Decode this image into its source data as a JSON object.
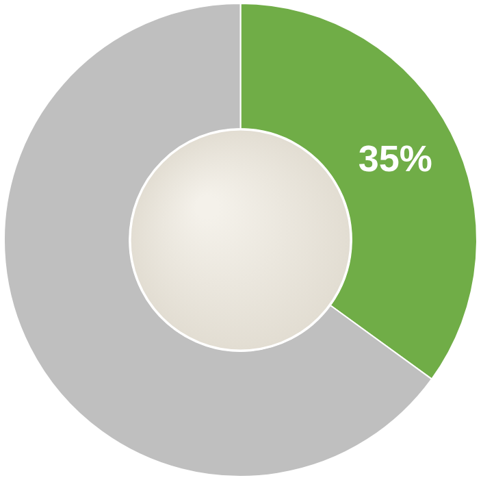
{
  "chart_data": {
    "type": "doughnut",
    "values": [
      35,
      65
    ],
    "value_labels": [
      "35%",
      null
    ],
    "colors": [
      "#70ad47",
      "#bfbfbf"
    ],
    "data_labels": true
  }
}
